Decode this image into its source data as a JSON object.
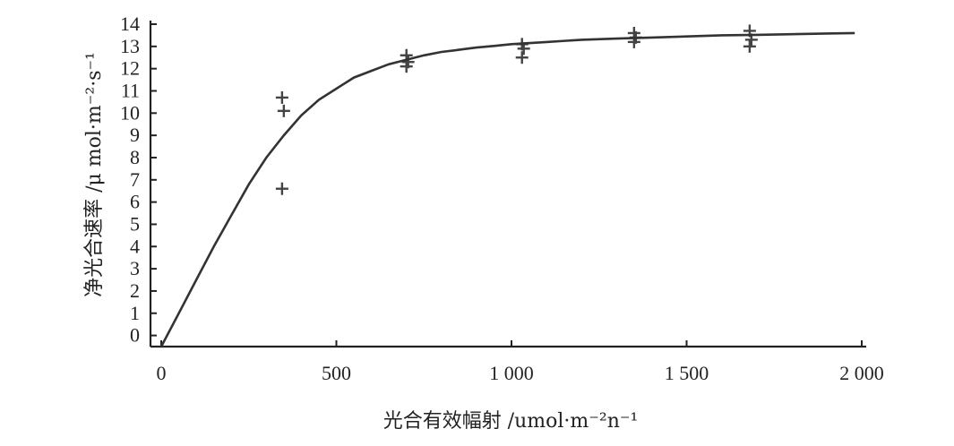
{
  "chart_data": {
    "type": "scatter",
    "xlabel": "光合有效幅射 /umol·m⁻²n⁻¹",
    "ylabel": "净光合速率 /μ  mol·m⁻²·s⁻¹",
    "xlim": [
      0,
      2000
    ],
    "ylim": [
      -0.5,
      14
    ],
    "x_ticks": [
      0,
      500,
      1000,
      1500,
      2000
    ],
    "x_tick_labels": [
      "0",
      "500",
      "1 000",
      "1 500",
      "2 000"
    ],
    "y_ticks": [
      0,
      1,
      2,
      3,
      4,
      5,
      6,
      7,
      8,
      9,
      10,
      11,
      12,
      13,
      14
    ],
    "y_tick_labels": [
      "0",
      "1",
      "2",
      "3",
      "4",
      "5",
      "6",
      "7",
      "8",
      "9",
      "10",
      "11",
      "12",
      "13",
      "14"
    ],
    "grid": false,
    "series": [
      {
        "kind": "points",
        "marker": "plus",
        "points": [
          {
            "x": 345,
            "y": 10.7
          },
          {
            "x": 350,
            "y": 10.1
          },
          {
            "x": 345,
            "y": 6.6
          },
          {
            "x": 700,
            "y": 12.6
          },
          {
            "x": 705,
            "y": 12.3
          },
          {
            "x": 700,
            "y": 12.1
          },
          {
            "x": 1030,
            "y": 13.1
          },
          {
            "x": 1035,
            "y": 12.9
          },
          {
            "x": 1030,
            "y": 12.5
          },
          {
            "x": 1350,
            "y": 13.6
          },
          {
            "x": 1355,
            "y": 13.4
          },
          {
            "x": 1350,
            "y": 13.2
          },
          {
            "x": 1680,
            "y": 13.7
          },
          {
            "x": 1685,
            "y": 13.3
          },
          {
            "x": 1680,
            "y": 13.0
          }
        ]
      },
      {
        "kind": "fitted-curve",
        "x": [
          0,
          50,
          100,
          150,
          200,
          250,
          300,
          350,
          400,
          450,
          500,
          550,
          600,
          650,
          700,
          750,
          800,
          850,
          900,
          950,
          1000,
          1100,
          1200,
          1300,
          1400,
          1500,
          1600,
          1700,
          1800,
          1900,
          1980
        ],
        "y": [
          -0.5,
          1.0,
          2.5,
          4.0,
          5.4,
          6.8,
          8.0,
          9.0,
          9.9,
          10.6,
          11.1,
          11.6,
          11.9,
          12.2,
          12.4,
          12.6,
          12.75,
          12.85,
          12.95,
          13.02,
          13.1,
          13.2,
          13.3,
          13.35,
          13.4,
          13.45,
          13.5,
          13.52,
          13.55,
          13.58,
          13.6
        ]
      }
    ]
  }
}
